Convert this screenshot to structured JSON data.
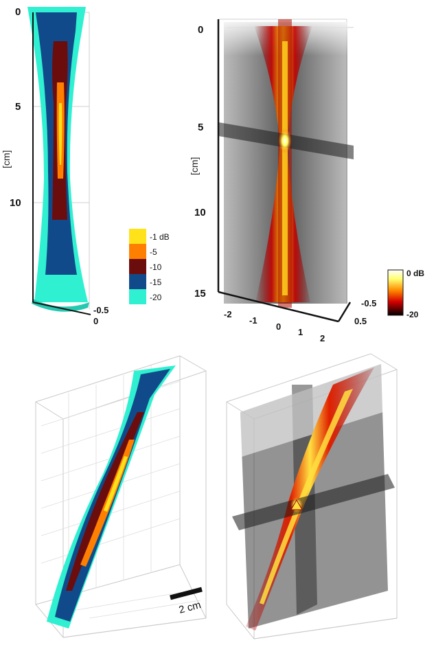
{
  "panel_top_left": {
    "depth_ticks": [
      "0",
      "5",
      "10"
    ],
    "depth_unit": "[cm]",
    "lateral_ticks": [
      "-0.5",
      "0"
    ],
    "legend": {
      "levels": [
        {
          "label": "-1 dB",
          "color": "#ffe21a"
        },
        {
          "label": "-5",
          "color": "#ff7f00"
        },
        {
          "label": "-10",
          "color": "#6b0d0d"
        },
        {
          "label": "-15",
          "color": "#114a8a"
        },
        {
          "label": "-20",
          "color": "#2ff0d0"
        }
      ]
    }
  },
  "panel_top_right": {
    "depth_ticks": [
      "0",
      "5",
      "10",
      "15"
    ],
    "depth_unit": "[cm]",
    "x_ticks": [
      "-2",
      "-1",
      "0",
      "1",
      "2"
    ],
    "y_ticks": [
      "-0.5",
      "0.5"
    ],
    "colorbar": {
      "max_label": "0 dB",
      "min_label": "-20"
    }
  },
  "panel_bottom_left": {
    "scale_bar_label": "2 cm"
  },
  "colors": {
    "gray_volume": "#5a5a5a",
    "grid": "#c8c8c8"
  }
}
